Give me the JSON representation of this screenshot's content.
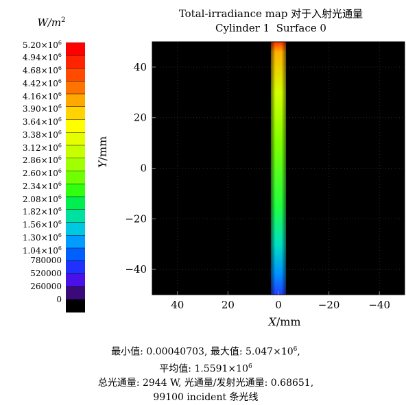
{
  "legend": {
    "unit": "W/m",
    "unit_exp": "2",
    "entries": [
      {
        "m": "5.20",
        "e": "6",
        "color": "#ff0000"
      },
      {
        "m": "4.94",
        "e": "6",
        "color": "#ff2400"
      },
      {
        "m": "4.68",
        "e": "6",
        "color": "#ff4a00"
      },
      {
        "m": "4.42",
        "e": "6",
        "color": "#ff7400"
      },
      {
        "m": "4.16",
        "e": "6",
        "color": "#ffa800"
      },
      {
        "m": "3.90",
        "e": "6",
        "color": "#ffd400"
      },
      {
        "m": "3.64",
        "e": "6",
        "color": "#ffff00"
      },
      {
        "m": "3.38",
        "e": "6",
        "color": "#e6ff00"
      },
      {
        "m": "3.12",
        "e": "6",
        "color": "#c8ff00"
      },
      {
        "m": "2.86",
        "e": "6",
        "color": "#a0ff00"
      },
      {
        "m": "2.60",
        "e": "6",
        "color": "#70ff00"
      },
      {
        "m": "2.34",
        "e": "6",
        "color": "#30ff10"
      },
      {
        "m": "2.08",
        "e": "6",
        "color": "#00ee50"
      },
      {
        "m": "1.82",
        "e": "6",
        "color": "#00e0a0"
      },
      {
        "m": "1.56",
        "e": "6",
        "color": "#00c8e0"
      },
      {
        "m": "1.30",
        "e": "6",
        "color": "#009cff"
      },
      {
        "m": "1.04",
        "e": "6",
        "color": "#0060ff"
      },
      {
        "m": "780000",
        "e": "",
        "color": "#2030ff"
      },
      {
        "m": "520000",
        "e": "",
        "color": "#4a10e8"
      },
      {
        "m": "260000",
        "e": "",
        "color": "#3a0a78"
      },
      {
        "m": "0",
        "e": "",
        "color": "#000000"
      }
    ]
  },
  "chart_data": {
    "type": "heatmap",
    "title": "Total-irradiance map 对于入射光通量",
    "subtitle": "Cylinder 1  Surface 0",
    "xlabel_var": "X",
    "xlabel_unit": "/mm",
    "ylabel_var": "Y",
    "ylabel_unit": "/mm",
    "x_ticks": [
      "40",
      "20",
      "0",
      "−20",
      "−40"
    ],
    "y_ticks": [
      "40",
      "20",
      "0",
      "−20",
      "−40"
    ],
    "xlim": [
      50,
      -50
    ],
    "ylim": [
      -50,
      50
    ],
    "x_reversed": true,
    "strip": {
      "x_min": -3,
      "x_max": 3,
      "y_min": -50,
      "y_max": 50
    },
    "gradient": [
      {
        "y": 50,
        "color": "#ff3000"
      },
      {
        "y": 46,
        "color": "#ffb000"
      },
      {
        "y": 30,
        "color": "#d4ff00"
      },
      {
        "y": 10,
        "color": "#80ff00"
      },
      {
        "y": -15,
        "color": "#20ff40"
      },
      {
        "y": -30,
        "color": "#00e0c0"
      },
      {
        "y": -42,
        "color": "#0090ff"
      },
      {
        "y": -50,
        "color": "#2040ff"
      }
    ]
  },
  "footer": {
    "line1": "最小值: 0.00040703, 最大值: 5.047×10",
    "line1_exp": "6",
    "line1_tail": ",",
    "line2": "平均值: 1.5591×10",
    "line2_exp": "6",
    "line3": "总光通量: 2944 W, 光通量/发射光通量: 0.68651,",
    "line4": "99100 incident 条光线"
  }
}
